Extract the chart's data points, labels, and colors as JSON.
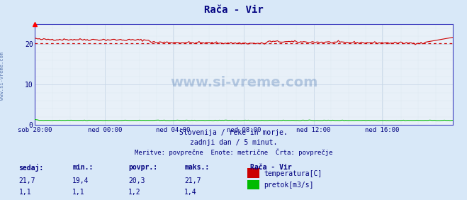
{
  "title": "Rača - Vir",
  "bg_color": "#d8e8f8",
  "plot_bg_color": "#e8f0f8",
  "grid_color_major": "#c8d8e8",
  "grid_color_minor": "#dce8f0",
  "x_labels": [
    "sob 20:00",
    "ned 00:00",
    "ned 04:00",
    "ned 08:00",
    "ned 12:00",
    "ned 16:00"
  ],
  "x_ticks_norm": [
    0.0,
    0.1667,
    0.3333,
    0.5,
    0.6667,
    0.8333
  ],
  "x_max": 288,
  "y_ticks": [
    0,
    10,
    20
  ],
  "y_lim": [
    0,
    25
  ],
  "temp_avg": 20.3,
  "temp_color": "#cc0000",
  "flow_color": "#00bb00",
  "dotted_color": "#cc0000",
  "watermark": "www.si-vreme.com",
  "subtitle1": "Slovenija / reke in morje.",
  "subtitle2": "zadnji dan / 5 minut.",
  "subtitle3": "Meritve: povprečne  Enote: metrične  Črta: povprečje",
  "legend_title": "Rača - Vir",
  "legend_items": [
    "temperatura[C]",
    "pretok[m3/s]"
  ],
  "legend_colors": [
    "#cc0000",
    "#00bb00"
  ],
  "stat_headers": [
    "sedaj:",
    "min.:",
    "povpr.:",
    "maks.:"
  ],
  "stat_temp": [
    "21,7",
    "19,4",
    "20,3",
    "21,7"
  ],
  "stat_flow": [
    "1,1",
    "1,1",
    "1,2",
    "1,4"
  ],
  "sidebar_text": "www.si-vreme.com",
  "title_color": "#000080",
  "label_color": "#000080",
  "stat_color": "#000080",
  "axis_color": "#4040c0"
}
